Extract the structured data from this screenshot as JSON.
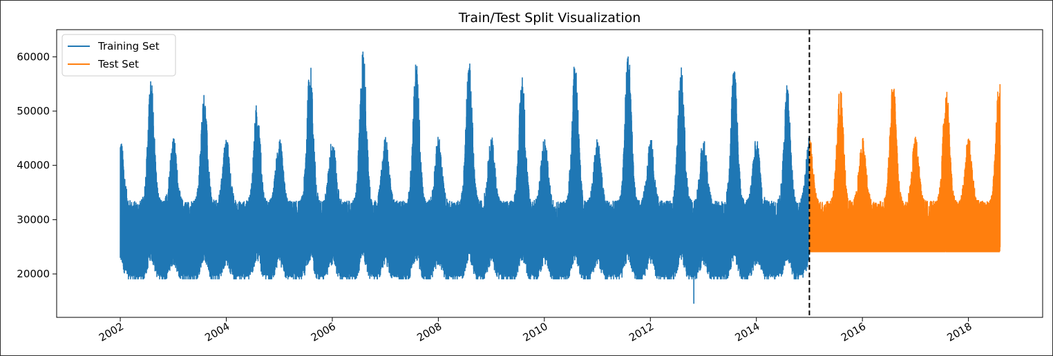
{
  "chart_data": {
    "type": "line",
    "title": "Train/Test Split Visualization",
    "xlabel": "",
    "ylabel": "",
    "xlim": [
      2000.8,
      2019.4
    ],
    "ylim": [
      12000,
      65000
    ],
    "x_ticks": [
      "2002",
      "2004",
      "2006",
      "2008",
      "2010",
      "2012",
      "2014",
      "2016",
      "2018"
    ],
    "y_ticks": [
      "20000",
      "30000",
      "40000",
      "50000",
      "60000"
    ],
    "split_marker": {
      "x": 2015.0,
      "style": "dashed",
      "color": "#000000"
    },
    "legend": {
      "position": "top-left"
    },
    "grid": false,
    "series": [
      {
        "name": "Training Set",
        "color": "#1f77b4",
        "x_range": [
          2002.0,
          2015.0
        ],
        "approx_min": 14500,
        "approx_max": 62000,
        "yearly_summer_peaks": [
          {
            "year": 2002,
            "peak": 56000
          },
          {
            "year": 2003,
            "peak": 53500
          },
          {
            "year": 2004,
            "peak": 52000
          },
          {
            "year": 2005,
            "peak": 59000
          },
          {
            "year": 2006,
            "peak": 62000
          },
          {
            "year": 2007,
            "peak": 59500
          },
          {
            "year": 2008,
            "peak": 59500
          },
          {
            "year": 2009,
            "peak": 57000
          },
          {
            "year": 2010,
            "peak": 60000
          },
          {
            "year": 2011,
            "peak": 61500
          },
          {
            "year": 2012,
            "peak": 59000
          },
          {
            "year": 2013,
            "peak": 59000
          },
          {
            "year": 2014,
            "peak": 55000
          }
        ]
      },
      {
        "name": "Test Set",
        "color": "#ff7f0e",
        "x_range": [
          2015.0,
          2018.6
        ],
        "approx_min": 19500,
        "approx_max": 57000,
        "yearly_summer_peaks": [
          {
            "year": 2015,
            "peak": 55000
          },
          {
            "year": 2016,
            "peak": 56500
          },
          {
            "year": 2017,
            "peak": 55500
          },
          {
            "year": 2018,
            "peak": 56500
          }
        ]
      }
    ]
  }
}
